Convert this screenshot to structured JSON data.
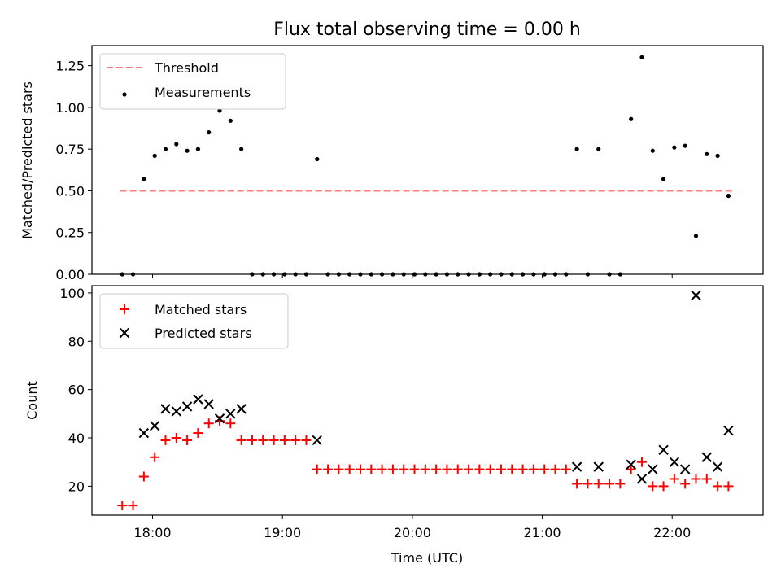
{
  "chart_data": [
    {
      "type": "scatter",
      "title": "Flux total observing time = 0.00 h",
      "xlabel": "",
      "ylabel": "Matched/Predicted stars",
      "xlim": [
        "17:32",
        "22:42"
      ],
      "ylim": [
        0,
        1.37
      ],
      "yticks": [
        "0.00",
        "0.25",
        "0.50",
        "0.75",
        "1.00",
        "1.25"
      ],
      "grid": false,
      "legend_position": "top-left",
      "threshold": {
        "name": "Threshold",
        "value": 0.5,
        "x_start": "17:45",
        "x_end": "22:28",
        "color": "#ff7f7f",
        "style": "dashed"
      },
      "series": [
        {
          "name": "Measurements",
          "color": "#000000",
          "marker": "dot",
          "points": [
            [
              "17:46",
              0.0
            ],
            [
              "17:51",
              0.0
            ],
            [
              "17:56",
              0.57
            ],
            [
              "18:01",
              0.71
            ],
            [
              "18:06",
              0.75
            ],
            [
              "18:11",
              0.78
            ],
            [
              "18:16",
              0.74
            ],
            [
              "18:21",
              0.75
            ],
            [
              "18:26",
              0.85
            ],
            [
              "18:31",
              0.98
            ],
            [
              "18:36",
              0.92
            ],
            [
              "18:41",
              0.75
            ],
            [
              "18:46",
              0.0
            ],
            [
              "18:51",
              0.0
            ],
            [
              "18:56",
              0.0
            ],
            [
              "19:01",
              0.0
            ],
            [
              "19:06",
              0.0
            ],
            [
              "19:11",
              0.0
            ],
            [
              "19:16",
              0.69
            ],
            [
              "19:21",
              0.0
            ],
            [
              "19:26",
              0.0
            ],
            [
              "19:31",
              0.0
            ],
            [
              "19:36",
              0.0
            ],
            [
              "19:41",
              0.0
            ],
            [
              "19:46",
              0.0
            ],
            [
              "19:51",
              0.0
            ],
            [
              "19:56",
              0.0
            ],
            [
              "20:01",
              0.0
            ],
            [
              "20:06",
              0.0
            ],
            [
              "20:11",
              0.0
            ],
            [
              "20:16",
              0.0
            ],
            [
              "20:21",
              0.0
            ],
            [
              "20:26",
              0.0
            ],
            [
              "20:31",
              0.0
            ],
            [
              "20:36",
              0.0
            ],
            [
              "20:41",
              0.0
            ],
            [
              "20:46",
              0.0
            ],
            [
              "20:51",
              0.0
            ],
            [
              "20:56",
              0.0
            ],
            [
              "21:01",
              0.0
            ],
            [
              "21:06",
              0.0
            ],
            [
              "21:11",
              0.0
            ],
            [
              "21:16",
              0.75
            ],
            [
              "21:21",
              0.0
            ],
            [
              "21:26",
              0.75
            ],
            [
              "21:31",
              0.0
            ],
            [
              "21:36",
              0.0
            ],
            [
              "21:41",
              0.93
            ],
            [
              "21:46",
              1.3
            ],
            [
              "21:51",
              0.74
            ],
            [
              "21:56",
              0.57
            ],
            [
              "22:01",
              0.76
            ],
            [
              "22:06",
              0.77
            ],
            [
              "22:11",
              0.23
            ],
            [
              "22:16",
              0.72
            ],
            [
              "22:21",
              0.71
            ],
            [
              "22:26",
              0.47
            ]
          ]
        }
      ]
    },
    {
      "type": "scatter",
      "title": "",
      "xlabel": "Time (UTC)",
      "ylabel": "Count",
      "xlim": [
        "17:32",
        "22:42"
      ],
      "ylim": [
        8,
        103
      ],
      "yticks": [
        "20",
        "40",
        "60",
        "80",
        "100"
      ],
      "xticks": [
        "18:00",
        "19:00",
        "20:00",
        "21:00",
        "22:00"
      ],
      "grid": false,
      "legend_position": "top-left",
      "series": [
        {
          "name": "Matched stars",
          "color": "#ff0000",
          "marker": "plus",
          "points": [
            [
              "17:46",
              12
            ],
            [
              "17:51",
              12
            ],
            [
              "17:56",
              24
            ],
            [
              "18:01",
              32
            ],
            [
              "18:06",
              39
            ],
            [
              "18:11",
              40
            ],
            [
              "18:16",
              39
            ],
            [
              "18:21",
              42
            ],
            [
              "18:26",
              46
            ],
            [
              "18:31",
              47
            ],
            [
              "18:36",
              46
            ],
            [
              "18:41",
              39
            ],
            [
              "18:46",
              39
            ],
            [
              "18:51",
              39
            ],
            [
              "18:56",
              39
            ],
            [
              "19:01",
              39
            ],
            [
              "19:06",
              39
            ],
            [
              "19:11",
              39
            ],
            [
              "19:16",
              27
            ],
            [
              "19:21",
              27
            ],
            [
              "19:26",
              27
            ],
            [
              "19:31",
              27
            ],
            [
              "19:36",
              27
            ],
            [
              "19:41",
              27
            ],
            [
              "19:46",
              27
            ],
            [
              "19:51",
              27
            ],
            [
              "19:56",
              27
            ],
            [
              "20:01",
              27
            ],
            [
              "20:06",
              27
            ],
            [
              "20:11",
              27
            ],
            [
              "20:16",
              27
            ],
            [
              "20:21",
              27
            ],
            [
              "20:26",
              27
            ],
            [
              "20:31",
              27
            ],
            [
              "20:36",
              27
            ],
            [
              "20:41",
              27
            ],
            [
              "20:46",
              27
            ],
            [
              "20:51",
              27
            ],
            [
              "20:56",
              27
            ],
            [
              "21:01",
              27
            ],
            [
              "21:06",
              27
            ],
            [
              "21:11",
              27
            ],
            [
              "21:16",
              21
            ],
            [
              "21:21",
              21
            ],
            [
              "21:26",
              21
            ],
            [
              "21:31",
              21
            ],
            [
              "21:36",
              21
            ],
            [
              "21:41",
              27
            ],
            [
              "21:46",
              30
            ],
            [
              "21:51",
              20
            ],
            [
              "21:56",
              20
            ],
            [
              "22:01",
              23
            ],
            [
              "22:06",
              21
            ],
            [
              "22:11",
              23
            ],
            [
              "22:16",
              23
            ],
            [
              "22:21",
              20
            ],
            [
              "22:26",
              20
            ]
          ]
        },
        {
          "name": "Predicted stars",
          "color": "#000000",
          "marker": "x",
          "points": [
            [
              "17:56",
              42
            ],
            [
              "18:01",
              45
            ],
            [
              "18:06",
              52
            ],
            [
              "18:11",
              51
            ],
            [
              "18:16",
              53
            ],
            [
              "18:21",
              56
            ],
            [
              "18:26",
              54
            ],
            [
              "18:31",
              48
            ],
            [
              "18:36",
              50
            ],
            [
              "18:41",
              52
            ],
            [
              "19:16",
              39
            ],
            [
              "21:16",
              28
            ],
            [
              "21:26",
              28
            ],
            [
              "21:41",
              29
            ],
            [
              "21:46",
              23
            ],
            [
              "21:51",
              27
            ],
            [
              "21:56",
              35
            ],
            [
              "22:01",
              30
            ],
            [
              "22:06",
              27
            ],
            [
              "22:11",
              99
            ],
            [
              "22:16",
              32
            ],
            [
              "22:21",
              28
            ],
            [
              "22:26",
              43
            ]
          ]
        }
      ]
    }
  ]
}
